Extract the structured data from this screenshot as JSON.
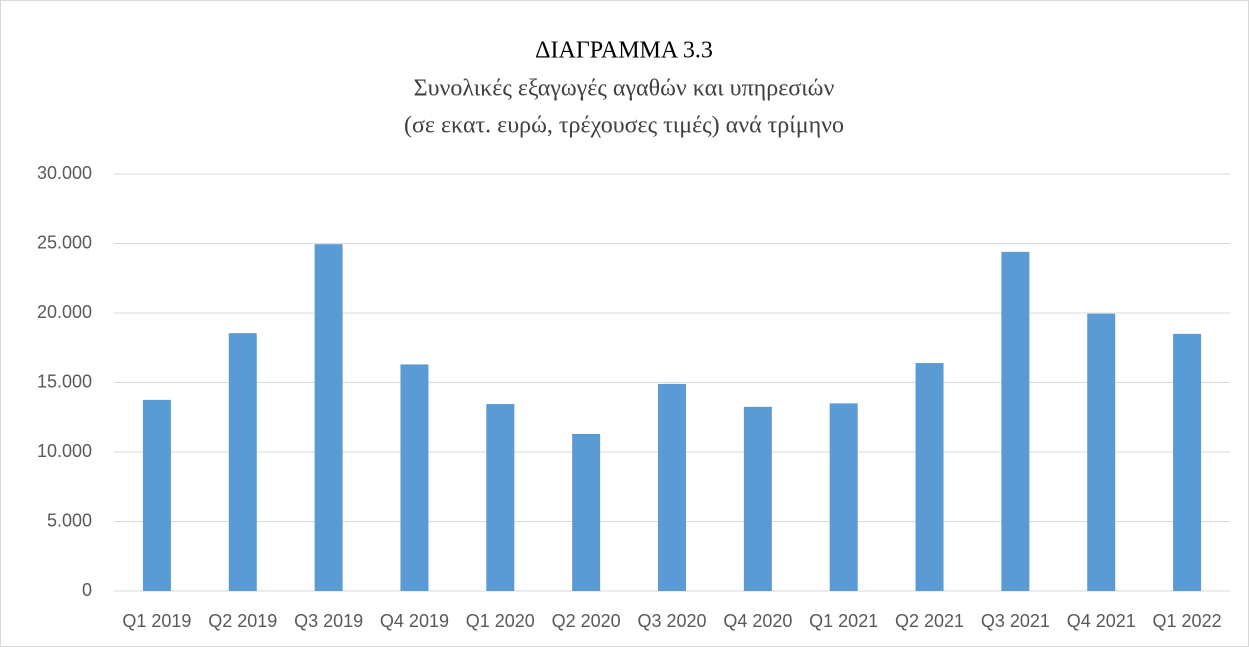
{
  "chart_data": {
    "type": "bar",
    "title": "ΔΙΑΓΡΑΜΜΑ 3.3",
    "subtitle": [
      "Συνολικές εξαγωγές αγαθών και υπηρεσιών",
      "(σε εκατ. ευρώ, τρέχουσες τιμές) ανά τρίμηνο"
    ],
    "categories": [
      "Q1 2019",
      "Q2 2019",
      "Q3 2019",
      "Q4 2019",
      "Q1 2020",
      "Q2 2020",
      "Q3 2020",
      "Q4 2020",
      "Q1 2021",
      "Q2 2021",
      "Q3 2021",
      "Q4 2021",
      "Q1 2022"
    ],
    "values": [
      13750,
      18550,
      24950,
      16300,
      13450,
      11300,
      14900,
      13250,
      13500,
      16400,
      24400,
      19950,
      18500
    ],
    "color": "#5b9bd5",
    "ylim": [
      0,
      30000
    ],
    "yticks": [
      0,
      {
        "value": 5000,
        "label": "5.000"
      },
      {
        "value": 10000,
        "label": "10.000"
      },
      {
        "value": 15000,
        "label": "15.000"
      },
      {
        "value": 20000,
        "label": "20.000"
      },
      {
        "value": 25000,
        "label": "25.000"
      },
      {
        "value": 30000,
        "label": "30.000"
      }
    ],
    "grid": true
  }
}
